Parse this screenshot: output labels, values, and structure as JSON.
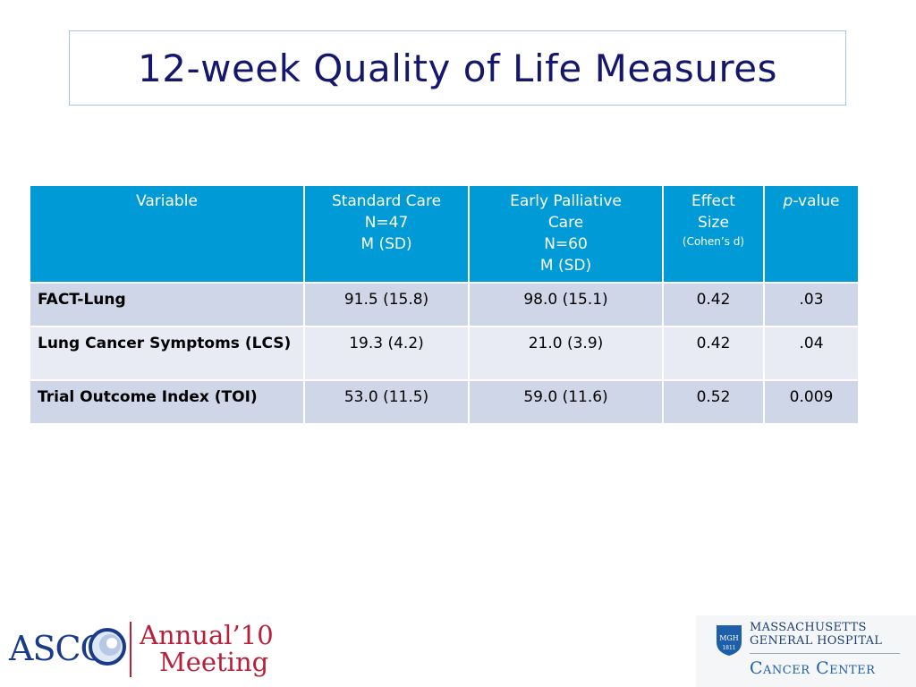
{
  "slide": {
    "title": "12-week Quality of Life Measures"
  },
  "table": {
    "headers": {
      "variable": "Variable",
      "standard_care": [
        "Standard Care",
        "N=47",
        "M (SD)"
      ],
      "early_palliative": [
        "Early Palliative",
        "Care",
        "N=60",
        "M (SD)"
      ],
      "effect_size": [
        "Effect",
        "Size"
      ],
      "effect_size_sub": "(Cohen’s d)",
      "p_value_p": "p",
      "p_value_rest": "-value"
    },
    "rows": [
      {
        "variable": "FACT-Lung",
        "standard": "91.5 (15.8)",
        "early": "98.0 (15.1)",
        "effect": "0.42",
        "p": ".03"
      },
      {
        "variable": "Lung Cancer Symptoms (LCS)",
        "standard": "19.3 (4.2)",
        "early": "21.0 (3.9)",
        "effect": "0.42",
        "p": ".04"
      },
      {
        "variable": "Trial Outcome Index (TOI)",
        "standard": "53.0 (11.5)",
        "early": "59.0 (11.6)",
        "effect": "0.52",
        "p": "0.009"
      }
    ]
  },
  "footer": {
    "asco_logo": "ASCO",
    "annual_line1": "Annual",
    "annual_year": "’10",
    "annual_line2": "Meeting",
    "mgh_shield": "MGH",
    "mgh_shield_year": "1811",
    "mgh_line1": "MASSACHUSETTS",
    "mgh_line2": "GENERAL HOSPITAL",
    "mgh_cancer_center": "Cancer Center"
  },
  "colors": {
    "title": "#14176b",
    "header_bg": "#009ad6",
    "row_dark": "#cfd6e8",
    "row_light": "#e8ebf4"
  }
}
